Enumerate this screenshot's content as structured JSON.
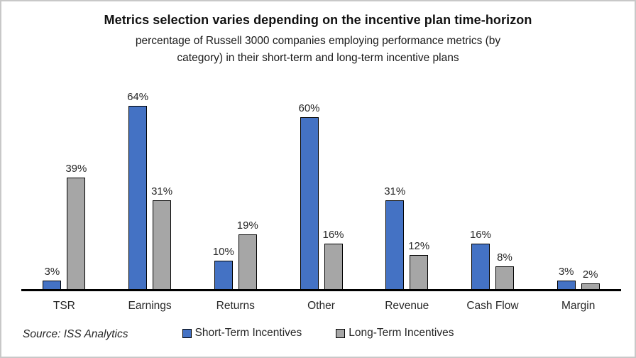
{
  "header": {
    "title": "Metrics selection varies depending on the incentive plan time-horizon",
    "subtitle_lines": [
      "percentage of Russell 3000 companies employing performance metrics (by",
      "category) in their short-term and long-term incentive plans"
    ]
  },
  "chart_data": {
    "type": "bar",
    "title": "Metrics selection varies depending on the incentive plan time-horizon",
    "subtitle": "percentage of Russell 3000 companies employing performance metrics (by category) in their short-term and long-term incentive plans",
    "categories": [
      "TSR",
      "Earnings",
      "Returns",
      "Other",
      "Revenue",
      "Cash Flow",
      "Margin"
    ],
    "series": [
      {
        "name": "Short-Term Incentives",
        "color": "#4472C4",
        "values": [
          3,
          64,
          10,
          60,
          31,
          16,
          3
        ]
      },
      {
        "name": "Long-Term Incentives",
        "color": "#A6A6A6",
        "values": [
          39,
          31,
          19,
          16,
          12,
          8,
          2
        ]
      }
    ],
    "value_suffix": "%",
    "data_labels": true,
    "xlabel": "",
    "ylabel": "",
    "ylim": [
      0,
      70
    ],
    "grid": false,
    "legend_position": "bottom",
    "axis_color": "#000000",
    "bar_outline_color": "#000000"
  },
  "footer": {
    "source": "Source: ISS Analytics"
  }
}
